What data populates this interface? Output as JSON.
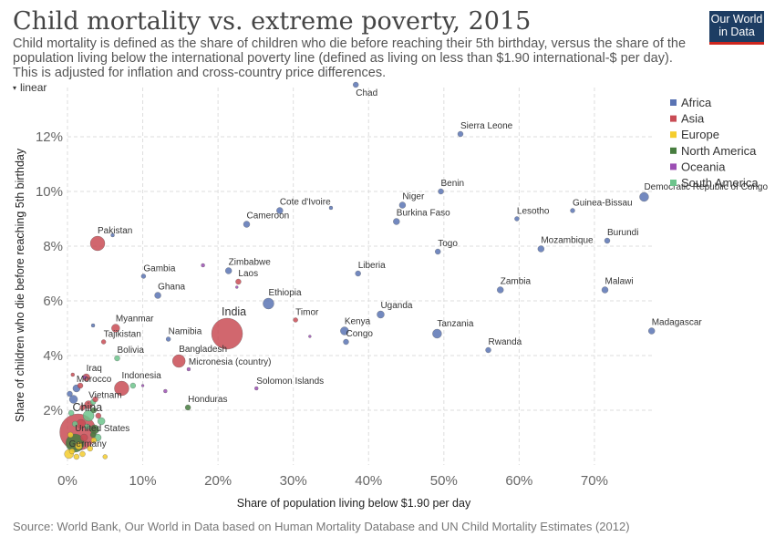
{
  "header": {
    "title": "Child mortality vs. extreme poverty, 2015",
    "subtitle": "Child mortality is defined as the share of children who die before reaching their 5th birthday, versus the share of the population living below the international poverty line (defined as living on less than $1.90 international-$ per day). This is adjusted for inflation and cross-country price differences.",
    "logo_line1": "Our World",
    "logo_line2": "in Data",
    "scale_label": "linear"
  },
  "footer": {
    "source": "Source: World Bank, Our World in Data based on Human Mortality Database and UN Child Mortality Estimates (2012)"
  },
  "colors": {
    "Africa": "#5a74b4",
    "Asia": "#c94c55",
    "Europe": "#f5cd2d",
    "North America": "#477d3f",
    "Oceania": "#9c4fb4",
    "South America": "#6dc48c",
    "grid": "#dddddd",
    "logo_bg": "#1d3d63",
    "logo_accent": "#ce261e"
  },
  "chart_data": {
    "type": "scatter",
    "xlabel": "Share of population living below $1.90 per day",
    "ylabel": "Share of children who die before reaching 5th birthday",
    "xlim": [
      0,
      78
    ],
    "ylim": [
      0,
      13.8
    ],
    "x_ticks": [
      0,
      10,
      20,
      30,
      40,
      50,
      60,
      70
    ],
    "x_tick_labels": [
      "0%",
      "10%",
      "20%",
      "30%",
      "40%",
      "50%",
      "60%",
      "70%"
    ],
    "y_ticks": [
      2,
      4,
      6,
      8,
      10,
      12
    ],
    "y_tick_labels": [
      "2%",
      "4%",
      "6%",
      "8%",
      "10%",
      "12%"
    ],
    "grid": true,
    "legend_position": "right",
    "legend": [
      "Africa",
      "Asia",
      "Europe",
      "North America",
      "Oceania",
      "South America"
    ],
    "points": [
      {
        "label": "Chad",
        "x": 38.3,
        "y": 13.9,
        "region": "Africa",
        "size": 3
      },
      {
        "label": "Sierra Leone",
        "x": 52.2,
        "y": 12.1,
        "region": "Africa",
        "size": 3
      },
      {
        "label": "Benin",
        "x": 49.6,
        "y": 10.0,
        "region": "Africa",
        "size": 3
      },
      {
        "label": "Democratic Republic of Congo",
        "x": 76.6,
        "y": 9.8,
        "region": "Africa",
        "size": 5
      },
      {
        "label": "Niger",
        "x": 44.5,
        "y": 9.5,
        "region": "Africa",
        "size": 3.5
      },
      {
        "label": "Cote d'Ivoire",
        "x": 28.2,
        "y": 9.3,
        "region": "Africa",
        "size": 3.5
      },
      {
        "label": "Guinea-Bissau",
        "x": 67.1,
        "y": 9.3,
        "region": "Africa",
        "size": 2.5
      },
      {
        "label": "Lesotho",
        "x": 59.7,
        "y": 9.0,
        "region": "Africa",
        "size": 2.5
      },
      {
        "label": "Burkina Faso",
        "x": 43.7,
        "y": 8.9,
        "region": "Africa",
        "size": 3.5
      },
      {
        "label": "Cameroon",
        "x": 23.8,
        "y": 8.8,
        "region": "Africa",
        "size": 3.5
      },
      {
        "label": "Pakistan",
        "x": 4.0,
        "y": 8.1,
        "region": "Asia",
        "size": 8
      },
      {
        "label": "Burundi",
        "x": 71.7,
        "y": 8.2,
        "region": "Africa",
        "size": 3
      },
      {
        "label": "Togo",
        "x": 49.2,
        "y": 7.8,
        "region": "Africa",
        "size": 3
      },
      {
        "label": "Mozambique",
        "x": 62.9,
        "y": 7.9,
        "region": "Africa",
        "size": 3.5
      },
      {
        "label": "Gambia",
        "x": 10.1,
        "y": 6.9,
        "region": "Africa",
        "size": 2.5
      },
      {
        "label": "Zimbabwe",
        "x": 21.4,
        "y": 7.1,
        "region": "Africa",
        "size": 3.5
      },
      {
        "label": "Liberia",
        "x": 38.6,
        "y": 7.0,
        "region": "Africa",
        "size": 3
      },
      {
        "label": "Laos",
        "x": 22.7,
        "y": 6.7,
        "region": "Asia",
        "size": 3
      },
      {
        "label": "Zambia",
        "x": 57.5,
        "y": 6.4,
        "region": "Africa",
        "size": 3.5
      },
      {
        "label": "Malawi",
        "x": 71.4,
        "y": 6.4,
        "region": "Africa",
        "size": 3.5
      },
      {
        "label": "Ghana",
        "x": 12.0,
        "y": 6.2,
        "region": "Africa",
        "size": 3.5
      },
      {
        "label": "Ethiopia",
        "x": 26.7,
        "y": 5.9,
        "region": "Africa",
        "size": 6
      },
      {
        "label": "Uganda",
        "x": 41.6,
        "y": 5.5,
        "region": "Africa",
        "size": 4
      },
      {
        "label": "Timor",
        "x": 30.3,
        "y": 5.3,
        "region": "Asia",
        "size": 2.5
      },
      {
        "label": "Myanmar",
        "x": 6.4,
        "y": 5.0,
        "region": "Asia",
        "size": 4.5
      },
      {
        "label": "Madagascar",
        "x": 77.6,
        "y": 4.9,
        "region": "Africa",
        "size": 3.5
      },
      {
        "label": "Kenya",
        "x": 36.8,
        "y": 4.9,
        "region": "Africa",
        "size": 4.5
      },
      {
        "label": "Tanzania",
        "x": 49.1,
        "y": 4.8,
        "region": "Africa",
        "size": 5
      },
      {
        "label": "India",
        "x": 21.2,
        "y": 4.8,
        "region": "Asia",
        "size": 17
      },
      {
        "label": "Namibia",
        "x": 13.4,
        "y": 4.6,
        "region": "Africa",
        "size": 2.5
      },
      {
        "label": "Tajikistan",
        "x": 4.8,
        "y": 4.5,
        "region": "Asia",
        "size": 2.5
      },
      {
        "label": "Congo",
        "x": 37.0,
        "y": 4.5,
        "region": "Africa",
        "size": 3
      },
      {
        "label": "Rwanda",
        "x": 55.9,
        "y": 4.2,
        "region": "Africa",
        "size": 3
      },
      {
        "label": "Bangladesh",
        "x": 14.8,
        "y": 3.8,
        "region": "Asia",
        "size": 7
      },
      {
        "label": "Bolivia",
        "x": 6.6,
        "y": 3.9,
        "region": "South America",
        "size": 3
      },
      {
        "label": "Micronesia (country)",
        "x": 16.1,
        "y": 3.5,
        "region": "Oceania",
        "size": 2
      },
      {
        "label": "Iraq",
        "x": 2.5,
        "y": 3.2,
        "region": "Asia",
        "size": 4
      },
      {
        "label": "Indonesia",
        "x": 7.2,
        "y": 2.8,
        "region": "Asia",
        "size": 8
      },
      {
        "label": "Solomon Islands",
        "x": 25.1,
        "y": 2.8,
        "region": "Oceania",
        "size": 2
      },
      {
        "label": "Morocco",
        "x": 1.2,
        "y": 2.8,
        "region": "Africa",
        "size": 4
      },
      {
        "label": "Vietnam",
        "x": 2.8,
        "y": 2.2,
        "region": "Asia",
        "size": 4.5
      },
      {
        "label": "Honduras",
        "x": 16.0,
        "y": 2.1,
        "region": "North America",
        "size": 3
      },
      {
        "label": "China",
        "x": 1.4,
        "y": 1.2,
        "region": "Asia",
        "size": 20
      },
      {
        "label": "United States",
        "x": 1.0,
        "y": 0.8,
        "region": "North America",
        "size": 10
      },
      {
        "label": "Germany",
        "x": 0.2,
        "y": 0.4,
        "region": "Europe",
        "size": 5
      },
      {
        "label": "",
        "x": 1.8,
        "y": 1.5,
        "region": "Asia",
        "size": 5
      },
      {
        "label": "",
        "x": 2.8,
        "y": 1.8,
        "region": "South America",
        "size": 6
      },
      {
        "label": "",
        "x": 3.6,
        "y": 1.3,
        "region": "North America",
        "size": 5
      },
      {
        "label": "",
        "x": 4.5,
        "y": 1.6,
        "region": "South America",
        "size": 4
      },
      {
        "label": "",
        "x": 0.8,
        "y": 2.4,
        "region": "Africa",
        "size": 4.5
      },
      {
        "label": "",
        "x": 1.5,
        "y": 0.7,
        "region": "Europe",
        "size": 4
      },
      {
        "label": "",
        "x": 2.0,
        "y": 0.4,
        "region": "Europe",
        "size": 3
      },
      {
        "label": "",
        "x": 3.0,
        "y": 0.6,
        "region": "Europe",
        "size": 3
      },
      {
        "label": "",
        "x": 5.0,
        "y": 0.3,
        "region": "Europe",
        "size": 2.5
      },
      {
        "label": "",
        "x": 4.0,
        "y": 1.0,
        "region": "South America",
        "size": 4
      },
      {
        "label": "",
        "x": 0.5,
        "y": 1.9,
        "region": "South America",
        "size": 3
      },
      {
        "label": "",
        "x": 8.7,
        "y": 2.9,
        "region": "South America",
        "size": 3
      },
      {
        "label": "",
        "x": 3.4,
        "y": 2.3,
        "region": "South America",
        "size": 3
      },
      {
        "label": "",
        "x": 0.3,
        "y": 2.6,
        "region": "Africa",
        "size": 3
      },
      {
        "label": "",
        "x": 1.7,
        "y": 2.9,
        "region": "Asia",
        "size": 3
      },
      {
        "label": "",
        "x": 2.2,
        "y": 1.0,
        "region": "Asia",
        "size": 4
      },
      {
        "label": "",
        "x": 3.5,
        "y": 0.9,
        "region": "Europe",
        "size": 3
      },
      {
        "label": "",
        "x": 1.0,
        "y": 1.5,
        "region": "South America",
        "size": 3
      },
      {
        "label": "",
        "x": 3.4,
        "y": 1.1,
        "region": "North America",
        "size": 3
      },
      {
        "label": "",
        "x": 0.4,
        "y": 1.1,
        "region": "Europe",
        "size": 3
      },
      {
        "label": "",
        "x": 2.0,
        "y": 2.1,
        "region": "Asia",
        "size": 3
      },
      {
        "label": "",
        "x": 3.7,
        "y": 2.4,
        "region": "Asia",
        "size": 3
      },
      {
        "label": "",
        "x": 2.3,
        "y": 3.2,
        "region": "Oceania",
        "size": 2
      },
      {
        "label": "",
        "x": 3.5,
        "y": 2.0,
        "region": "North America",
        "size": 3
      },
      {
        "label": "",
        "x": 4.1,
        "y": 1.8,
        "region": "Asia",
        "size": 3
      },
      {
        "label": "",
        "x": 2.6,
        "y": 1.4,
        "region": "South America",
        "size": 3
      },
      {
        "label": "",
        "x": 0.6,
        "y": 0.5,
        "region": "Europe",
        "size": 3
      },
      {
        "label": "",
        "x": 1.2,
        "y": 0.3,
        "region": "Europe",
        "size": 3
      },
      {
        "label": "",
        "x": 0.7,
        "y": 3.3,
        "region": "Asia",
        "size": 2
      },
      {
        "label": "",
        "x": 3.4,
        "y": 5.1,
        "region": "Africa",
        "size": 2
      },
      {
        "label": "",
        "x": 6.0,
        "y": 8.4,
        "region": "Africa",
        "size": 2
      },
      {
        "label": "",
        "x": 18.0,
        "y": 7.3,
        "region": "Oceania",
        "size": 2
      },
      {
        "label": "",
        "x": 22.5,
        "y": 6.5,
        "region": "Oceania",
        "size": 1.5
      },
      {
        "label": "",
        "x": 35.0,
        "y": 9.4,
        "region": "Africa",
        "size": 2
      },
      {
        "label": "",
        "x": 32.2,
        "y": 4.7,
        "region": "Oceania",
        "size": 1.5
      },
      {
        "label": "",
        "x": 13.0,
        "y": 2.7,
        "region": "Oceania",
        "size": 2
      },
      {
        "label": "",
        "x": 10.0,
        "y": 2.9,
        "region": "Oceania",
        "size": 1.5
      }
    ],
    "label_offsets": {}
  }
}
